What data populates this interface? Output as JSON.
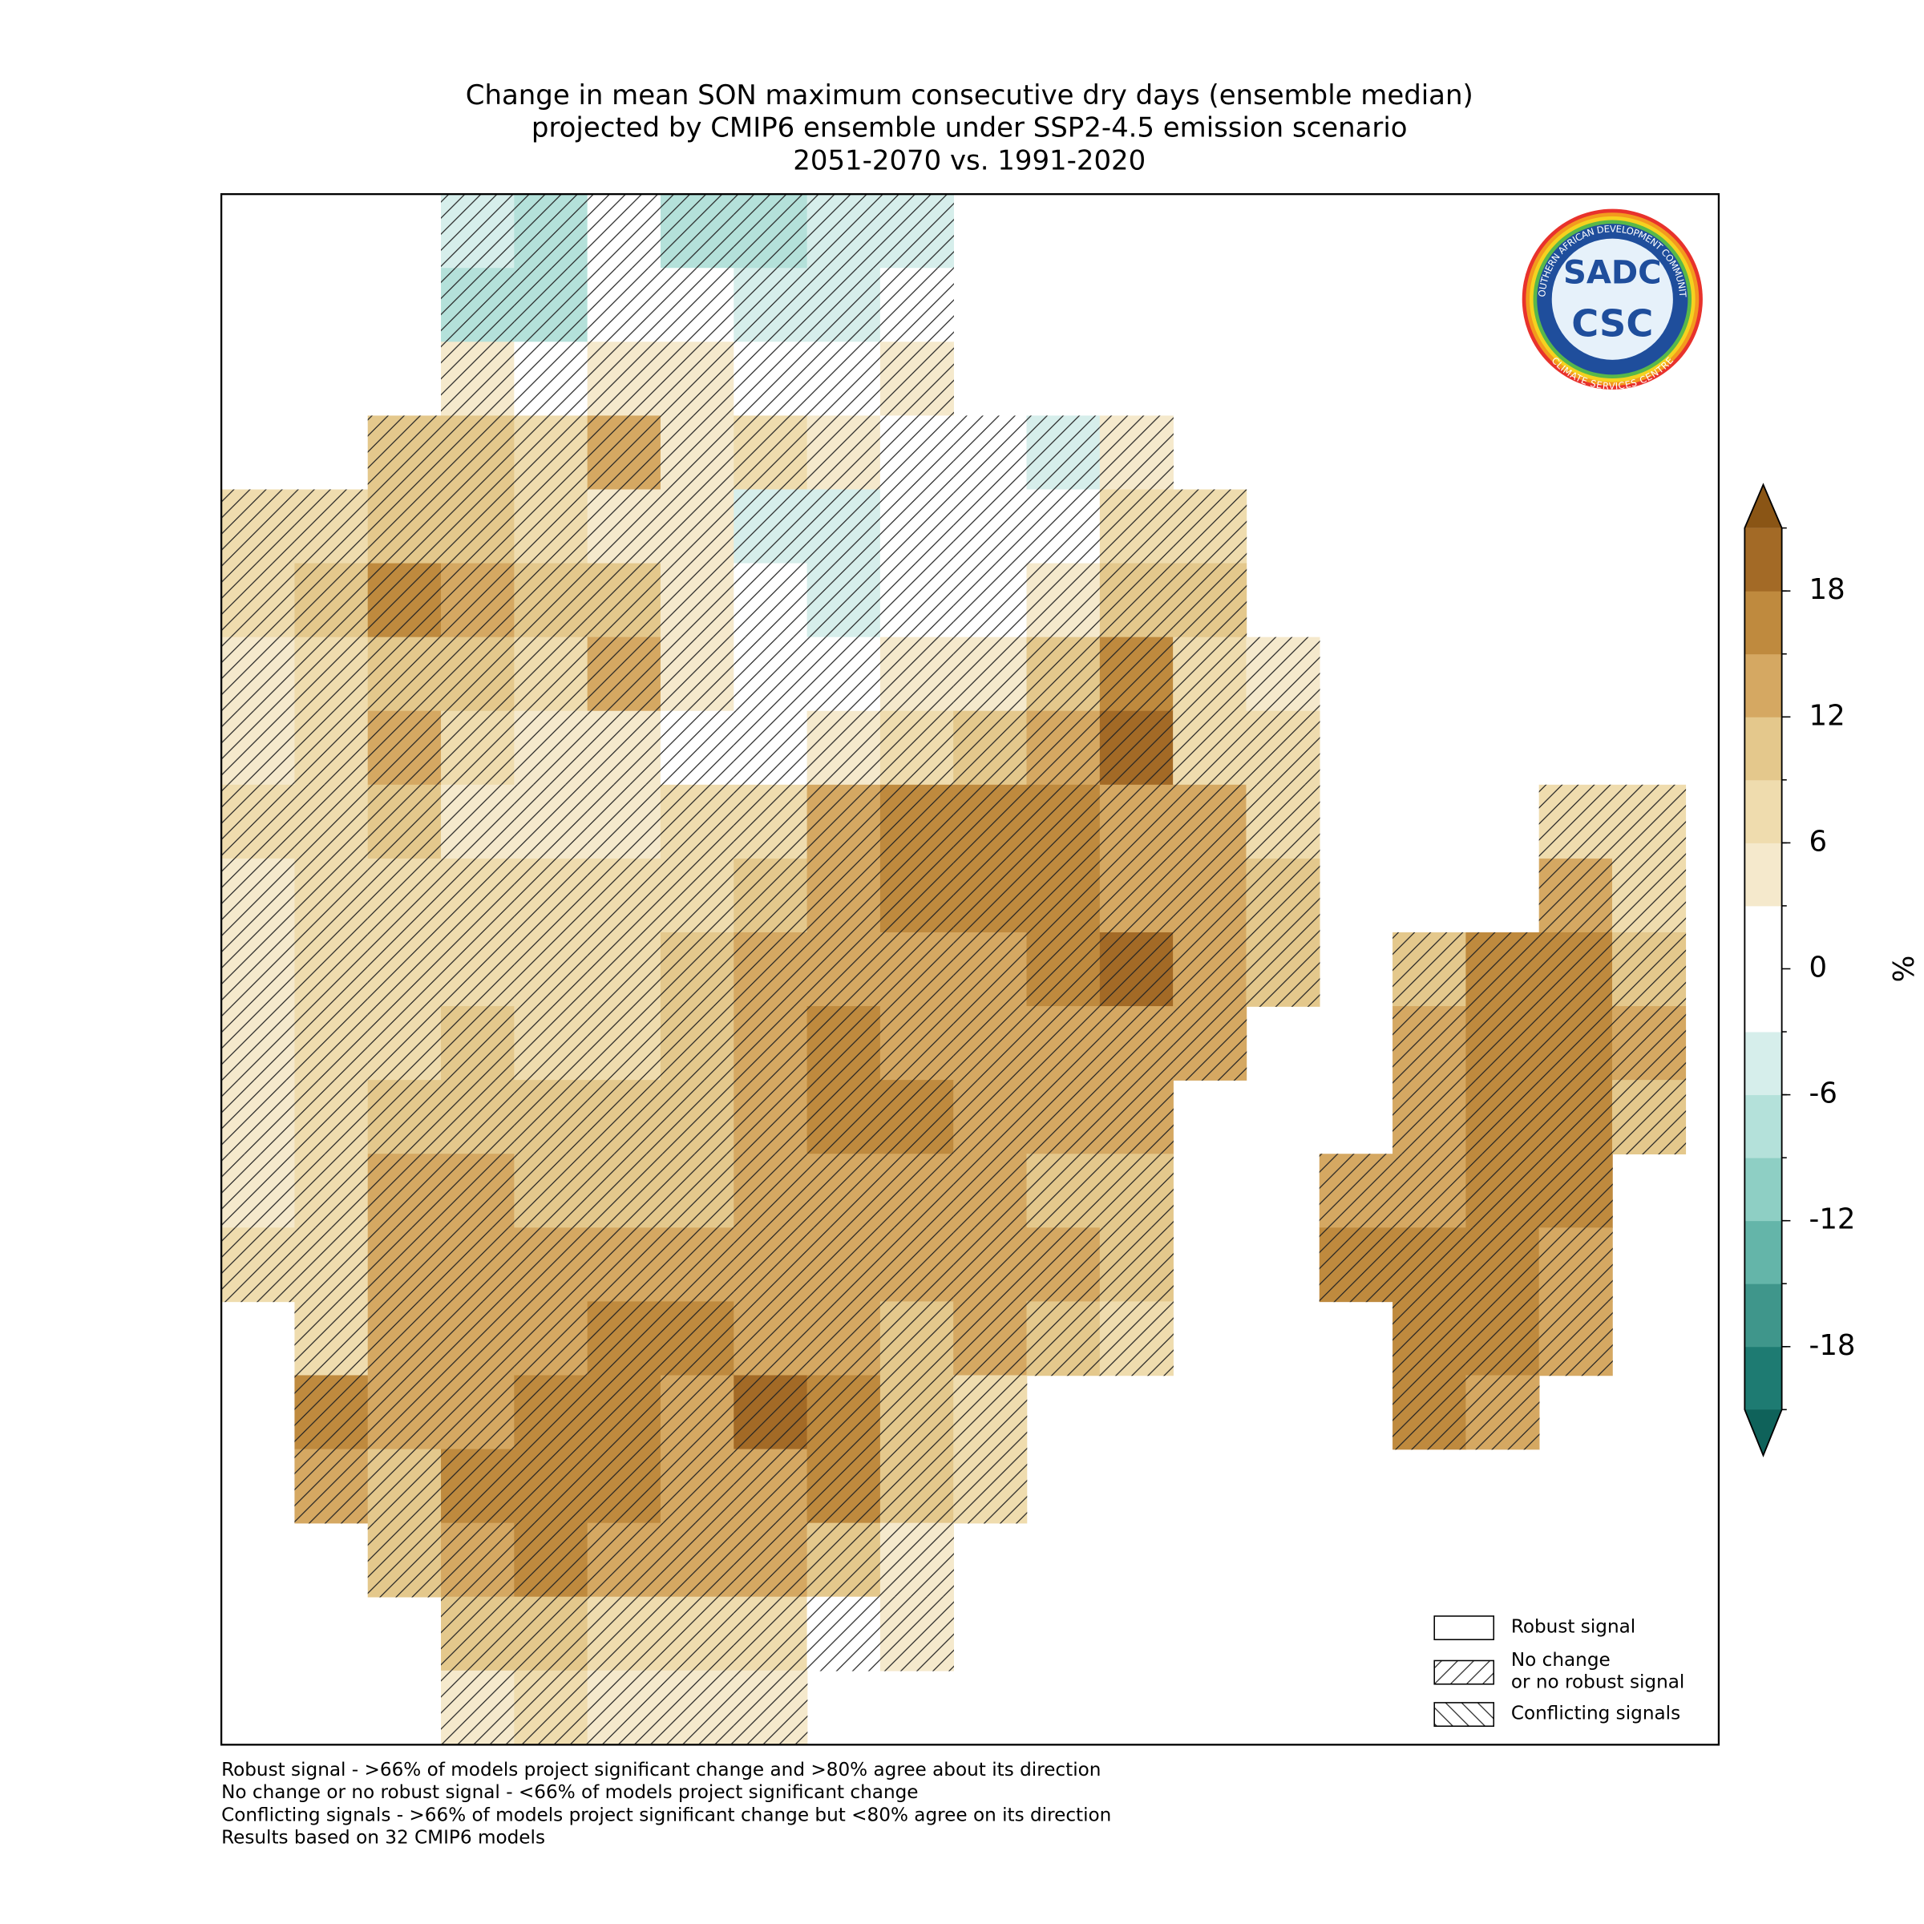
{
  "chart_data": {
    "type": "gridded-map",
    "title": [
      "Change in mean SON maximum consecutive dry days (ensemble median)",
      "projected by CMIP6 ensemble under SSP2-4.5 emission scenario",
      "2051-2070 vs. 1991-2020"
    ],
    "values": [
      [
        null,
        null,
        null,
        -5,
        -7,
        0,
        -7,
        -8,
        -6,
        -6,
        null,
        null,
        null,
        null,
        null,
        null,
        null,
        null,
        null,
        null,
        null
      ],
      [
        null,
        null,
        null,
        -8,
        -9,
        -3,
        0,
        -4,
        -5,
        -3,
        null,
        null,
        null,
        null,
        null,
        null,
        null,
        null,
        null,
        null,
        null
      ],
      [
        null,
        null,
        null,
        3,
        0,
        4,
        3,
        0,
        -3,
        3,
        null,
        null,
        null,
        null,
        null,
        null,
        null,
        null,
        null,
        null,
        null
      ],
      [
        null,
        null,
        9,
        10,
        8,
        12,
        5,
        6,
        4,
        0,
        0,
        -4,
        5,
        null,
        null,
        null,
        null,
        null,
        null,
        null,
        null
      ],
      [
        6,
        8,
        10,
        10,
        7,
        3,
        4,
        -5,
        -6,
        0,
        0,
        0,
        7,
        7,
        null,
        null,
        null,
        null,
        null,
        null,
        null
      ],
      [
        6,
        9,
        16,
        13,
        9,
        10,
        5,
        0,
        -4,
        0,
        0,
        4,
        9,
        10,
        null,
        null,
        null,
        null,
        null,
        null,
        null
      ],
      [
        5,
        8,
        11,
        9,
        7,
        12,
        5,
        0,
        0,
        3,
        4,
        10,
        15,
        8,
        4,
        null,
        null,
        null,
        null,
        null,
        null
      ],
      [
        5,
        8,
        12,
        6,
        5,
        3,
        0,
        0,
        4,
        8,
        10,
        14,
        18,
        8,
        6,
        null,
        null,
        null,
        null,
        null,
        null
      ],
      [
        6,
        6,
        10,
        5,
        4,
        5,
        6,
        8,
        12,
        15,
        16,
        17,
        14,
        12,
        8,
        null,
        null,
        null,
        6,
        6,
        null
      ],
      [
        5,
        7,
        8,
        6,
        6,
        7,
        8,
        10,
        14,
        16,
        16,
        15,
        13,
        12,
        9,
        null,
        null,
        null,
        12,
        8,
        null
      ],
      [
        4,
        7,
        7,
        8,
        7,
        8,
        10,
        12,
        14,
        14,
        14,
        16,
        20,
        14,
        10,
        null,
        10,
        16,
        16,
        10,
        null
      ],
      [
        5,
        6,
        7,
        9,
        8,
        8,
        10,
        12,
        15,
        14,
        13,
        14,
        14,
        12,
        null,
        null,
        14,
        16,
        16,
        12,
        null
      ],
      [
        5,
        6,
        9,
        10,
        9,
        10,
        10,
        13,
        16,
        15,
        13,
        13,
        14,
        null,
        null,
        null,
        14,
        15,
        17,
        10,
        null
      ],
      [
        5,
        8,
        12,
        12,
        10,
        11,
        11,
        12,
        14,
        13,
        12,
        11,
        9,
        null,
        null,
        14,
        14,
        15,
        17,
        null,
        null
      ],
      [
        6,
        8,
        14,
        13,
        12,
        12,
        13,
        14,
        14,
        13,
        13,
        12,
        10,
        null,
        null,
        15,
        16,
        16,
        12,
        null,
        null
      ],
      [
        null,
        8,
        13,
        14,
        13,
        15,
        16,
        14,
        13,
        10,
        12,
        9,
        6,
        null,
        null,
        null,
        16,
        15,
        12,
        null,
        null
      ],
      [
        null,
        16,
        12,
        14,
        16,
        15,
        14,
        18,
        17,
        10,
        8,
        null,
        null,
        null,
        null,
        null,
        15,
        14,
        null,
        null,
        null
      ],
      [
        null,
        14,
        11,
        16,
        17,
        16,
        14,
        14,
        16,
        9,
        7,
        null,
        null,
        null,
        null,
        null,
        null,
        null,
        null,
        null,
        null
      ],
      [
        null,
        null,
        10,
        13,
        15,
        14,
        13,
        14,
        9,
        5,
        null,
        null,
        null,
        null,
        null,
        null,
        null,
        null,
        null,
        null,
        null
      ],
      [
        null,
        null,
        null,
        9,
        10,
        8,
        8,
        6,
        2,
        4,
        null,
        null,
        null,
        null,
        null,
        null,
        null,
        null,
        null,
        null,
        null
      ],
      [
        null,
        null,
        null,
        5,
        6,
        5,
        4,
        3,
        null,
        null,
        null,
        null,
        null,
        null,
        null,
        null,
        null,
        null,
        null,
        null,
        null
      ]
    ],
    "colorbar": {
      "label": "%",
      "lim": [
        -21,
        21
      ],
      "levels": [
        -21,
        -18,
        -15,
        -12,
        -9,
        -6,
        -3,
        3,
        6,
        9,
        12,
        15,
        18,
        21
      ],
      "colors": [
        "#1e7b72",
        "#3f968b",
        "#64b5a9",
        "#8ecfc4",
        "#b4e1da",
        "#d6eeeb",
        "#ffffff",
        "#f5e9cc",
        "#efdcae",
        "#e4c88c",
        "#d5a862",
        "#bf8a3e",
        "#a36a26"
      ],
      "under": "#0f625a",
      "over": "#8a5515",
      "yticks": [
        -18,
        -12,
        -6,
        0,
        6,
        12,
        18
      ]
    },
    "hatch": true,
    "legend": [
      {
        "lines": [
          "Robust signal"
        ],
        "pattern": "none"
      },
      {
        "lines": [
          "No change",
          "or no robust signal"
        ],
        "pattern": "forward"
      },
      {
        "lines": [
          "Conflicting signals"
        ],
        "pattern": "back"
      }
    ],
    "logo": {
      "top": "SOUTHERN AFRICAN DEVELOPMENT COMMUNITY",
      "bottom": "CLIMATE SERVICES CENTRE",
      "line1": "SADC",
      "line2": "CSC"
    },
    "notes": [
      "Robust signal - >66% of models project significant change and >80% agree about its direction",
      "No change or no robust signal - <66% of models project significant change",
      "Conflicting signals - >66% of models project significant change but <80% agree on its direction",
      "Results based on 32 CMIP6 models"
    ]
  }
}
